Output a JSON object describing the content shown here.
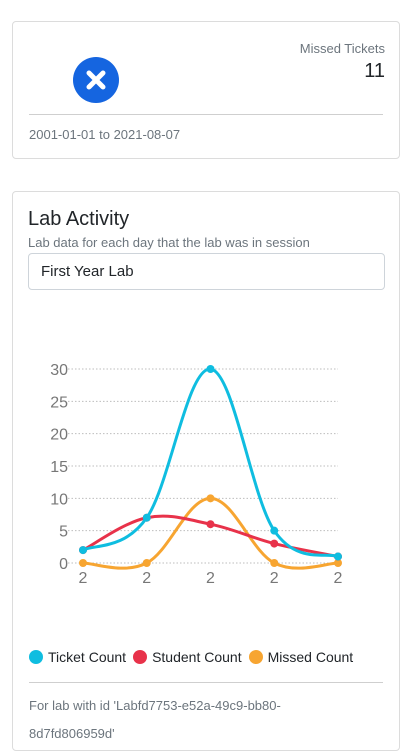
{
  "stat_card": {
    "label": "Missed Tickets",
    "value": "11",
    "icon": "x-circle-icon",
    "icon_color": "#1565e0",
    "date_range": "2001-01-01 to 2021-08-07"
  },
  "lab_card": {
    "title": "Lab Activity",
    "subtitle": "Lab data for each day that the lab was in session",
    "selected_lab": "First Year Lab",
    "footer": "For lab with id 'Labfd7753-e52a-49c9-bb80-8d7fd806959d'"
  },
  "chart_data": {
    "type": "line",
    "categories": [
      "2",
      "2",
      "2",
      "2",
      "2"
    ],
    "ylim": [
      0,
      30
    ],
    "yticks": [
      0,
      5,
      10,
      15,
      20,
      25,
      30
    ],
    "grid": true,
    "legend_position": "bottom",
    "series": [
      {
        "name": "Ticket Count",
        "color": "#0fbde0",
        "values": [
          2,
          7,
          30,
          5,
          1
        ]
      },
      {
        "name": "Student Count",
        "color": "#e8324a",
        "values": [
          2,
          7,
          6,
          3,
          1
        ]
      },
      {
        "name": "Missed Count",
        "color": "#f7a531",
        "values": [
          0,
          0,
          10,
          0,
          0
        ]
      }
    ]
  }
}
